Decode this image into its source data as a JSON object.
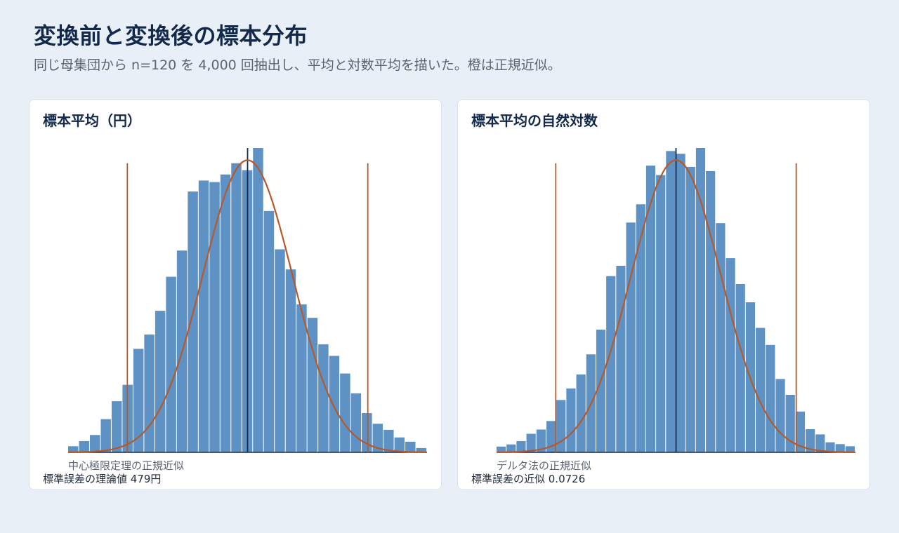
{
  "header": {
    "title": "変換前と変換後の標本分布",
    "subtitle": "同じ母集団から n=120 を 4,000 回抽出し、平均と対数平均を描いた。橙は正規近似。"
  },
  "colors": {
    "bar": "#5f92c4",
    "curve": "#b5592a",
    "mean_line": "#13294b",
    "axis": "#13294b"
  },
  "panels": [
    {
      "title": "標本平均（円）",
      "curve_label": "中心極限定理の正規近似",
      "footnote": "標準誤差の理論値 479円"
    },
    {
      "title": "標本平均の自然対数",
      "curve_label": "デルタ法の正規近似",
      "footnote": "標準誤差の近似 0.0726"
    }
  ],
  "chart_data": [
    {
      "type": "bar",
      "x_range": [
        -4.0,
        4.0
      ],
      "ylim": [
        0,
        100
      ],
      "values": [
        2.0,
        3.7,
        5.7,
        10.9,
        16.8,
        22.2,
        34.0,
        38.7,
        46.5,
        57.7,
        66.3,
        85.7,
        89.3,
        88.8,
        91.3,
        95.0,
        92.7,
        100.0,
        79.3,
        66.7,
        60.1,
        48.6,
        44.2,
        35.5,
        31.7,
        25.9,
        19.4,
        12.9,
        9.4,
        7.4,
        4.9,
        3.5,
        1.4
      ],
      "mean_line": 0.0,
      "ref_lines": [
        -2.68,
        2.68
      ],
      "curve": {
        "mean": 0.0,
        "sd": 1.0,
        "peak": 96.0
      }
    },
    {
      "type": "bar",
      "x_range": [
        -4.0,
        4.0
      ],
      "ylim": [
        0,
        100
      ],
      "values": [
        1.9,
        2.6,
        3.7,
        6.1,
        7.5,
        10.3,
        17.2,
        21.0,
        25.6,
        32.2,
        40.3,
        57.9,
        61.3,
        75.5,
        81.5,
        94.2,
        91.1,
        99.0,
        98.1,
        93.8,
        100.0,
        92.4,
        75.3,
        63.8,
        55.3,
        49.3,
        40.9,
        35.3,
        24.1,
        18.9,
        13.4,
        7.6,
        5.9,
        3.3,
        2.7,
        2.0
      ],
      "mean_line": 0.0,
      "ref_lines": [
        -2.68,
        2.68
      ],
      "curve": {
        "mean": 0.0,
        "sd": 1.0,
        "peak": 96.0
      }
    }
  ]
}
